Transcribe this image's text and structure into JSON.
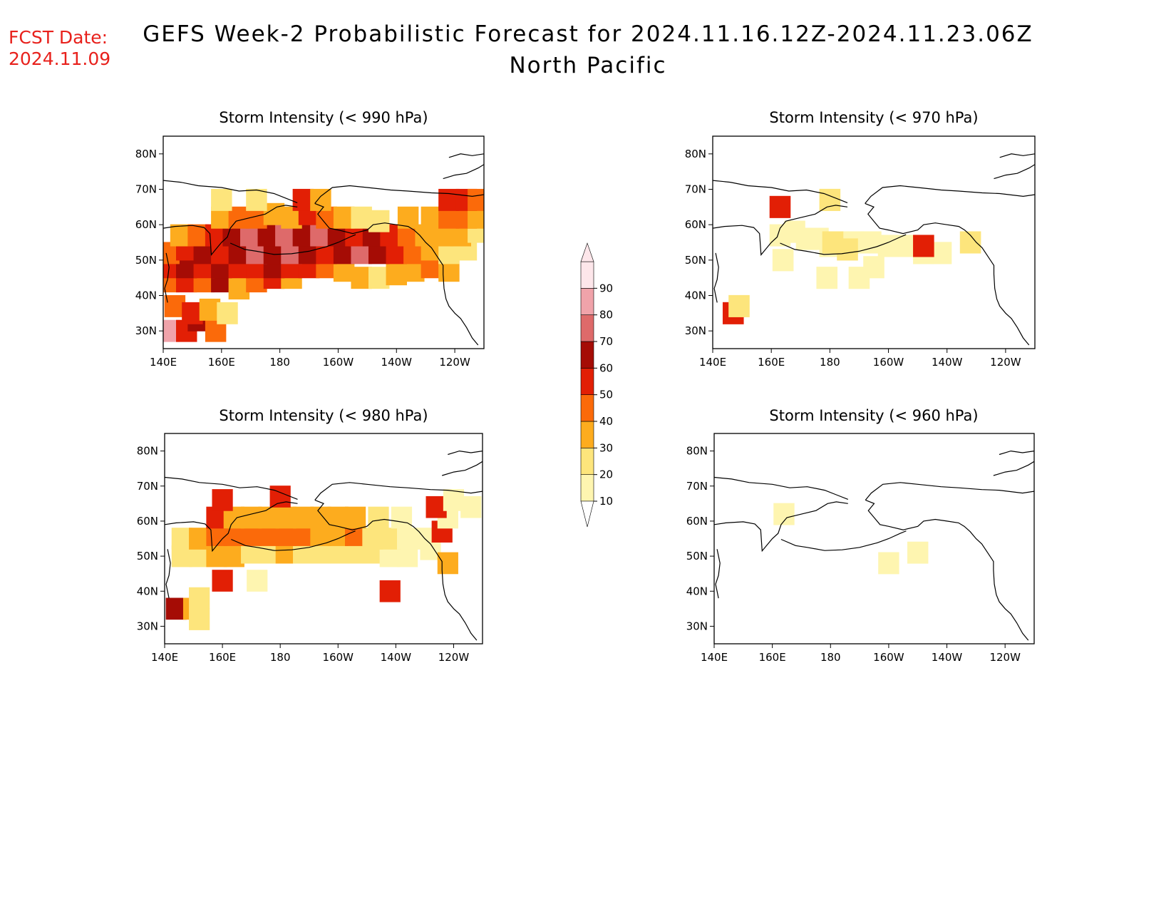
{
  "fcst_date": {
    "label": "FCST Date:",
    "value": "2024.11.09"
  },
  "title": "GEFS Week-2 Probabilistic Forecast for 2024.11.16.12Z-2024.11.23.06Z",
  "subtitle": "North Pacific",
  "colors": {
    "levels": [
      "#ffffff",
      "#fef5b0",
      "#fde57c",
      "#fdac1e",
      "#fb6a0a",
      "#e21f05",
      "#a50c05",
      "#de6a6a",
      "#f0a3aa",
      "#fde6ea"
    ],
    "coast": "#000000"
  },
  "colorbar": {
    "ticks": [
      "10",
      "20",
      "30",
      "40",
      "50",
      "60",
      "70",
      "80",
      "90"
    ]
  },
  "chart_data": [
    {
      "type": "heatmap",
      "title": "Storm Intensity (< 990 hPa)",
      "x_ticks": [
        "140E",
        "160E",
        "180",
        "160W",
        "140W",
        "120W"
      ],
      "y_ticks": [
        "30N",
        "40N",
        "50N",
        "60N",
        "70N",
        "80N"
      ],
      "xlim": [
        140,
        250
      ],
      "ylim": [
        25,
        85
      ],
      "cells": [
        [
          142,
          30,
          8
        ],
        [
          148,
          30,
          5
        ],
        [
          152,
          33,
          6
        ],
        [
          158,
          30,
          4
        ],
        [
          144,
          37,
          4
        ],
        [
          150,
          35,
          5
        ],
        [
          156,
          36,
          3
        ],
        [
          162,
          35,
          2
        ],
        [
          142,
          44,
          4
        ],
        [
          148,
          44,
          5
        ],
        [
          154,
          44,
          4
        ],
        [
          160,
          44,
          6
        ],
        [
          166,
          42,
          3
        ],
        [
          172,
          44,
          4
        ],
        [
          178,
          45,
          5
        ],
        [
          184,
          45,
          3
        ],
        [
          142,
          48,
          5
        ],
        [
          148,
          48,
          6
        ],
        [
          154,
          48,
          5
        ],
        [
          160,
          48,
          6
        ],
        [
          166,
          48,
          5
        ],
        [
          172,
          48,
          5
        ],
        [
          178,
          48,
          6
        ],
        [
          184,
          48,
          5
        ],
        [
          190,
          48,
          5
        ],
        [
          196,
          48,
          4
        ],
        [
          202,
          47,
          3
        ],
        [
          208,
          45,
          3
        ],
        [
          214,
          45,
          2
        ],
        [
          220,
          46,
          3
        ],
        [
          226,
          47,
          3
        ],
        [
          232,
          48,
          4
        ],
        [
          238,
          47,
          3
        ],
        [
          142,
          52,
          4
        ],
        [
          148,
          53,
          5
        ],
        [
          154,
          52,
          6
        ],
        [
          160,
          52,
          5
        ],
        [
          166,
          52,
          6
        ],
        [
          172,
          52,
          7
        ],
        [
          178,
          52,
          6
        ],
        [
          184,
          52,
          7
        ],
        [
          190,
          52,
          6
        ],
        [
          196,
          52,
          5
        ],
        [
          202,
          52,
          6
        ],
        [
          208,
          52,
          7
        ],
        [
          214,
          52,
          6
        ],
        [
          220,
          52,
          5
        ],
        [
          226,
          52,
          4
        ],
        [
          232,
          53,
          3
        ],
        [
          238,
          52,
          2
        ],
        [
          244,
          53,
          2
        ],
        [
          146,
          57,
          3
        ],
        [
          152,
          57,
          4
        ],
        [
          158,
          57,
          5
        ],
        [
          164,
          57,
          6
        ],
        [
          170,
          57,
          7
        ],
        [
          176,
          57,
          6
        ],
        [
          182,
          57,
          7
        ],
        [
          188,
          57,
          6
        ],
        [
          194,
          57,
          7
        ],
        [
          200,
          57,
          6
        ],
        [
          206,
          57,
          5
        ],
        [
          212,
          57,
          6
        ],
        [
          218,
          57,
          5
        ],
        [
          224,
          57,
          4
        ],
        [
          230,
          57,
          3
        ],
        [
          236,
          57,
          3
        ],
        [
          242,
          57,
          3
        ],
        [
          248,
          58,
          2
        ],
        [
          160,
          62,
          3
        ],
        [
          166,
          62,
          4
        ],
        [
          172,
          62,
          4
        ],
        [
          178,
          63,
          3
        ],
        [
          184,
          62,
          3
        ],
        [
          190,
          63,
          5
        ],
        [
          196,
          62,
          4
        ],
        [
          202,
          62,
          3
        ],
        [
          208,
          62,
          2
        ],
        [
          214,
          61,
          2
        ],
        [
          224,
          62,
          3
        ],
        [
          232,
          62,
          3
        ],
        [
          238,
          62,
          4
        ],
        [
          244,
          62,
          4
        ],
        [
          248,
          62,
          3
        ],
        [
          160,
          67,
          2
        ],
        [
          172,
          67,
          2
        ],
        [
          188,
          67,
          5
        ],
        [
          194,
          67,
          3
        ],
        [
          238,
          67,
          5
        ],
        [
          244,
          67,
          5
        ],
        [
          248,
          67,
          4
        ]
      ]
    },
    {
      "type": "heatmap",
      "title": "Storm Intensity (< 970 hPa)",
      "x_ticks": [
        "140E",
        "160E",
        "180",
        "160W",
        "140W",
        "120W"
      ],
      "y_ticks": [
        "30N",
        "40N",
        "50N",
        "60N",
        "70N",
        "80N"
      ],
      "xlim": [
        140,
        250
      ],
      "ylim": [
        25,
        85
      ],
      "cells": [
        [
          147,
          35,
          5
        ],
        [
          149,
          37,
          2
        ],
        [
          164,
          50,
          1
        ],
        [
          163,
          57,
          1
        ],
        [
          168,
          58,
          1
        ],
        [
          172,
          56,
          1
        ],
        [
          176,
          56,
          1
        ],
        [
          180,
          54,
          1
        ],
        [
          184,
          54,
          1
        ],
        [
          188,
          55,
          1
        ],
        [
          194,
          55,
          1
        ],
        [
          200,
          54,
          1
        ],
        [
          206,
          54,
          1
        ],
        [
          212,
          52,
          1
        ],
        [
          218,
          52,
          1
        ],
        [
          212,
          54,
          5
        ],
        [
          186,
          53,
          2
        ],
        [
          181,
          55,
          2
        ],
        [
          163,
          65,
          5
        ],
        [
          180,
          67,
          2
        ],
        [
          179,
          45,
          1
        ],
        [
          195,
          48,
          1
        ],
        [
          190,
          45,
          1
        ],
        [
          228,
          55,
          2
        ]
      ]
    },
    {
      "type": "heatmap",
      "title": "Storm Intensity (< 980 hPa)",
      "x_ticks": [
        "140E",
        "160E",
        "180",
        "160W",
        "140W",
        "120W"
      ],
      "y_ticks": [
        "30N",
        "40N",
        "50N",
        "60N",
        "70N",
        "80N"
      ],
      "xlim": [
        140,
        250
      ],
      "ylim": [
        25,
        85
      ],
      "cells": [
        [
          144,
          35,
          6
        ],
        [
          150,
          35,
          3
        ],
        [
          152,
          38,
          2
        ],
        [
          152,
          32,
          2
        ],
        [
          160,
          43,
          5
        ],
        [
          172,
          43,
          1
        ],
        [
          146,
          50,
          2
        ],
        [
          152,
          50,
          2
        ],
        [
          158,
          50,
          3
        ],
        [
          164,
          50,
          3
        ],
        [
          170,
          51,
          2
        ],
        [
          176,
          51,
          2
        ],
        [
          182,
          51,
          3
        ],
        [
          188,
          51,
          2
        ],
        [
          194,
          51,
          2
        ],
        [
          200,
          51,
          2
        ],
        [
          206,
          51,
          2
        ],
        [
          212,
          51,
          2
        ],
        [
          218,
          50,
          1
        ],
        [
          224,
          50,
          1
        ],
        [
          232,
          52,
          1
        ],
        [
          238,
          48,
          3
        ],
        [
          146,
          55,
          2
        ],
        [
          152,
          55,
          3
        ],
        [
          158,
          56,
          4
        ],
        [
          164,
          56,
          4
        ],
        [
          170,
          56,
          4
        ],
        [
          176,
          56,
          4
        ],
        [
          182,
          56,
          4
        ],
        [
          188,
          56,
          4
        ],
        [
          194,
          56,
          3
        ],
        [
          200,
          56,
          3
        ],
        [
          206,
          56,
          4
        ],
        [
          212,
          55,
          2
        ],
        [
          218,
          55,
          2
        ],
        [
          224,
          55,
          1
        ],
        [
          230,
          55,
          1
        ],
        [
          236,
          57,
          5
        ],
        [
          158,
          61,
          5
        ],
        [
          164,
          61,
          3
        ],
        [
          170,
          61,
          3
        ],
        [
          176,
          61,
          3
        ],
        [
          182,
          61,
          3
        ],
        [
          188,
          61,
          3
        ],
        [
          194,
          61,
          3
        ],
        [
          200,
          61,
          3
        ],
        [
          206,
          61,
          3
        ],
        [
          214,
          61,
          2
        ],
        [
          222,
          61,
          1
        ],
        [
          238,
          61,
          1
        ],
        [
          160,
          66,
          5
        ],
        [
          180,
          67,
          5
        ],
        [
          234,
          64,
          5
        ],
        [
          240,
          66,
          1
        ],
        [
          246,
          64,
          1
        ],
        [
          218,
          40,
          5
        ]
      ]
    },
    {
      "type": "heatmap",
      "title": "Storm Intensity (< 960 hPa)",
      "x_ticks": [
        "140E",
        "160E",
        "180",
        "160W",
        "140W",
        "120W"
      ],
      "y_ticks": [
        "30N",
        "40N",
        "50N",
        "60N",
        "70N",
        "80N"
      ],
      "xlim": [
        140,
        250
      ],
      "ylim": [
        25,
        85
      ],
      "cells": [
        [
          164,
          62,
          1
        ],
        [
          200,
          48,
          1
        ],
        [
          210,
          51,
          1
        ]
      ]
    }
  ]
}
